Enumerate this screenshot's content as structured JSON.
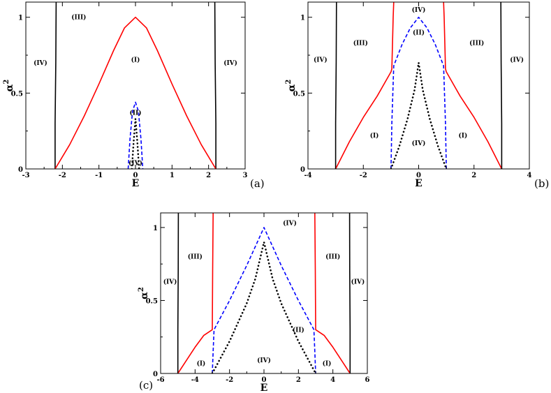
{
  "chart_data": [
    {
      "type": "line",
      "panel_label": "(a)",
      "xlabel": "E",
      "ylabel": "α",
      "ylabel_sup": "2",
      "xlim": [
        -3,
        3
      ],
      "ylim": [
        0,
        1.1
      ],
      "xticks": [
        "-3",
        "-2",
        "-1",
        "0",
        "1",
        "2",
        "3"
      ],
      "xtick_values": [
        -3,
        -2,
        -1,
        0,
        1,
        2,
        3
      ],
      "yticks": [
        "0",
        "0.5",
        "1"
      ],
      "ytick_values": [
        0,
        0.5,
        1
      ],
      "series": [
        {
          "color": "#000000",
          "style": "solid",
          "x": [
            -2.2,
            -2.2,
            -2.18,
            -2.17
          ],
          "y": [
            0,
            0.3,
            0.7,
            1.1
          ]
        },
        {
          "color": "#000000",
          "style": "solid",
          "x": [
            2.2,
            2.2,
            2.18,
            2.17
          ],
          "y": [
            0,
            0.3,
            0.7,
            1.1
          ]
        },
        {
          "color": "#ff0000",
          "style": "solid",
          "x": [
            -2.2,
            -1.8,
            -1.4,
            -1.0,
            -0.6,
            -0.3,
            0,
            0.3,
            0.6,
            1.0,
            1.4,
            1.8,
            2.2
          ],
          "y": [
            0,
            0.16,
            0.35,
            0.56,
            0.78,
            0.93,
            1.0,
            0.93,
            0.78,
            0.56,
            0.35,
            0.16,
            0
          ]
        },
        {
          "color": "#0000ff",
          "style": "dashed",
          "x": [
            -0.2,
            -0.15,
            -0.08,
            0,
            0.08,
            0.15,
            0.2
          ],
          "y": [
            0,
            0.2,
            0.38,
            0.44,
            0.38,
            0.2,
            0
          ]
        },
        {
          "color": "#000000",
          "style": "dotted",
          "x": [
            -0.1,
            -0.05,
            0,
            0.05,
            0.1
          ],
          "y": [
            0,
            0.18,
            0.33,
            0.18,
            0
          ]
        }
      ],
      "annotations": [
        {
          "text": "(III)",
          "x": -1.55,
          "y": 1.0
        },
        {
          "text": "(IV)",
          "x": -2.6,
          "y": 0.7
        },
        {
          "text": "(I)",
          "x": 0,
          "y": 0.72
        },
        {
          "text": "(IV)",
          "x": 2.6,
          "y": 0.7
        },
        {
          "text": "(II)",
          "x": 0,
          "y": 0.37
        },
        {
          "text": "(IV)",
          "x": 0,
          "y": 0.04
        }
      ]
    },
    {
      "type": "line",
      "panel_label": "(b)",
      "xlabel": "E",
      "ylabel": "α",
      "ylabel_sup": "2",
      "xlim": [
        -4,
        4
      ],
      "ylim": [
        0,
        1.1
      ],
      "xticks": [
        "-4",
        "-2",
        "0",
        "2",
        "4"
      ],
      "xtick_values": [
        -4,
        -2,
        0,
        2,
        4
      ],
      "yticks": [
        "0",
        "0.5",
        "1"
      ],
      "ytick_values": [
        0,
        0.5,
        1
      ],
      "series": [
        {
          "color": "#000000",
          "style": "solid",
          "x": [
            -3.0,
            -3.0,
            -2.98,
            -2.97
          ],
          "y": [
            0,
            0.3,
            0.7,
            1.1
          ]
        },
        {
          "color": "#000000",
          "style": "solid",
          "x": [
            3.0,
            3.0,
            2.98,
            2.97
          ],
          "y": [
            0,
            0.3,
            0.7,
            1.1
          ]
        },
        {
          "color": "#ff0000",
          "style": "solid",
          "x": [
            -3.0,
            -2.5,
            -2.0,
            -1.5,
            -1.0,
            -0.97,
            -0.92,
            -0.9
          ],
          "y": [
            0,
            0.18,
            0.34,
            0.48,
            0.64,
            0.66,
            1.0,
            1.1
          ]
        },
        {
          "color": "#ff0000",
          "style": "solid",
          "x": [
            3.0,
            2.5,
            2.0,
            1.5,
            1.0,
            0.97,
            0.92,
            0.9
          ],
          "y": [
            0,
            0.18,
            0.34,
            0.48,
            0.64,
            0.66,
            1.0,
            1.1
          ]
        },
        {
          "color": "#0000ff",
          "style": "dashed",
          "x": [
            -1.0,
            -0.97,
            -0.9,
            -0.6,
            -0.3,
            0,
            0.3,
            0.6,
            0.9,
            0.97,
            1.0
          ],
          "y": [
            0,
            0.3,
            0.68,
            0.82,
            0.93,
            1.0,
            0.93,
            0.82,
            0.68,
            0.3,
            0
          ]
        },
        {
          "color": "#000000",
          "style": "dotted",
          "x": [
            -1.0,
            -0.7,
            -0.4,
            -0.15,
            0,
            0.15,
            0.4,
            0.7,
            1.0
          ],
          "y": [
            0,
            0.15,
            0.33,
            0.52,
            0.7,
            0.52,
            0.33,
            0.15,
            0
          ]
        }
      ],
      "annotations": [
        {
          "text": "(IV)",
          "x": 0,
          "y": 1.05
        },
        {
          "text": "(II)",
          "x": 0,
          "y": 0.9
        },
        {
          "text": "(III)",
          "x": -2.1,
          "y": 0.83
        },
        {
          "text": "(III)",
          "x": 2.1,
          "y": 0.83
        },
        {
          "text": "(IV)",
          "x": -3.55,
          "y": 0.72
        },
        {
          "text": "(IV)",
          "x": 3.55,
          "y": 0.72
        },
        {
          "text": "(I)",
          "x": -1.6,
          "y": 0.22
        },
        {
          "text": "(I)",
          "x": 1.6,
          "y": 0.22
        },
        {
          "text": "(IV)",
          "x": 0,
          "y": 0.17
        }
      ]
    },
    {
      "type": "line",
      "panel_label": "(c)",
      "xlabel": "E",
      "ylabel": "α",
      "ylabel_sup": "2",
      "xlim": [
        -6,
        6
      ],
      "ylim": [
        0,
        1.1
      ],
      "xticks": [
        "-6",
        "-4",
        "-2",
        "0",
        "2",
        "4",
        "6"
      ],
      "xtick_values": [
        -6,
        -4,
        -2,
        0,
        2,
        4,
        6
      ],
      "yticks": [
        "0",
        "0.5",
        "1"
      ],
      "ytick_values": [
        0,
        0.5,
        1
      ],
      "series": [
        {
          "color": "#000000",
          "style": "solid",
          "x": [
            -5.0,
            -5.0,
            -4.98,
            -4.97
          ],
          "y": [
            0,
            0.3,
            0.7,
            1.1
          ]
        },
        {
          "color": "#000000",
          "style": "solid",
          "x": [
            5.0,
            5.0,
            4.98,
            4.97
          ],
          "y": [
            0,
            0.3,
            0.7,
            1.1
          ]
        },
        {
          "color": "#ff0000",
          "style": "solid",
          "x": [
            -5.0,
            -4.5,
            -4.0,
            -3.5,
            -3.0,
            -2.98,
            -2.95
          ],
          "y": [
            0,
            0.09,
            0.18,
            0.26,
            0.3,
            0.7,
            1.1
          ]
        },
        {
          "color": "#ff0000",
          "style": "solid",
          "x": [
            5.0,
            4.5,
            4.0,
            3.5,
            3.0,
            2.98,
            2.95
          ],
          "y": [
            0,
            0.09,
            0.18,
            0.26,
            0.3,
            0.7,
            1.1
          ]
        },
        {
          "color": "#0000ff",
          "style": "dashed",
          "x": [
            -3.0,
            -2.95,
            -2.9,
            -2.0,
            -1.0,
            0,
            1.0,
            2.0,
            2.9,
            2.95,
            3.0
          ],
          "y": [
            0,
            0.15,
            0.3,
            0.5,
            0.74,
            1.0,
            0.74,
            0.5,
            0.3,
            0.15,
            0
          ]
        },
        {
          "color": "#000000",
          "style": "dotted",
          "x": [
            -3.0,
            -2.0,
            -1.0,
            -0.5,
            0,
            0.5,
            1.0,
            2.0,
            3.0
          ],
          "y": [
            0,
            0.22,
            0.48,
            0.65,
            0.9,
            0.65,
            0.48,
            0.22,
            0
          ]
        }
      ],
      "annotations": [
        {
          "text": "(IV)",
          "x": 1.5,
          "y": 1.03
        },
        {
          "text": "(III)",
          "x": -4.0,
          "y": 0.8
        },
        {
          "text": "(III)",
          "x": 4.0,
          "y": 0.8
        },
        {
          "text": "(IV)",
          "x": -5.45,
          "y": 0.63
        },
        {
          "text": "(IV)",
          "x": 5.45,
          "y": 0.63
        },
        {
          "text": "(II)",
          "x": 2.0,
          "y": 0.3
        },
        {
          "text": "(I)",
          "x": -3.65,
          "y": 0.07
        },
        {
          "text": "(I)",
          "x": 3.65,
          "y": 0.07
        },
        {
          "text": "(IV)",
          "x": 0,
          "y": 0.09
        }
      ]
    }
  ]
}
